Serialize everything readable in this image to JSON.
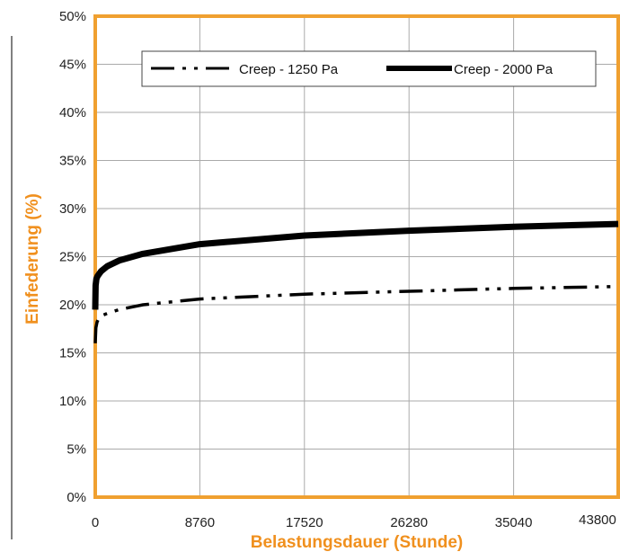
{
  "chart_data": {
    "type": "line",
    "title": "",
    "xlabel": "Belastungsdauer (Stunde)",
    "ylabel": "Einfederung (%)",
    "xlim": [
      0,
      43800
    ],
    "ylim": [
      0,
      0.5
    ],
    "x_ticks": [
      0,
      8760,
      17520,
      26280,
      35040,
      43800
    ],
    "x_tick_labels": [
      "0",
      "8760",
      "17520",
      "26280",
      "35040",
      "43800"
    ],
    "y_ticks": [
      0,
      0.05,
      0.1,
      0.15,
      0.2,
      0.25,
      0.3,
      0.35,
      0.4,
      0.45,
      0.5
    ],
    "y_tick_labels": [
      "0%",
      "5%",
      "10%",
      "15%",
      "20%",
      "25%",
      "30%",
      "35%",
      "40%",
      "45%",
      "50%"
    ],
    "grid": true,
    "legend_position": "top",
    "colors": {
      "plot_border": "#f0a030",
      "axis_title": "#f0901e",
      "series": "#000000",
      "grid": "#aaaaaa"
    },
    "series": [
      {
        "name": "Creep - 1250 Pa",
        "style": "dash-dot-dot",
        "x": [
          0,
          50,
          150,
          300,
          600,
          1000,
          2000,
          4000,
          8760,
          17520,
          26280,
          35040,
          43800
        ],
        "y": [
          0.16,
          0.176,
          0.182,
          0.186,
          0.189,
          0.191,
          0.195,
          0.2,
          0.206,
          0.211,
          0.214,
          0.217,
          0.219
        ]
      },
      {
        "name": "Creep - 2000 Pa",
        "style": "solid-thick",
        "x": [
          0,
          30,
          100,
          200,
          500,
          1000,
          2000,
          4000,
          8760,
          17520,
          26280,
          35040,
          43800
        ],
        "y": [
          0.195,
          0.22,
          0.227,
          0.23,
          0.235,
          0.24,
          0.246,
          0.253,
          0.263,
          0.272,
          0.277,
          0.281,
          0.284
        ]
      }
    ]
  }
}
